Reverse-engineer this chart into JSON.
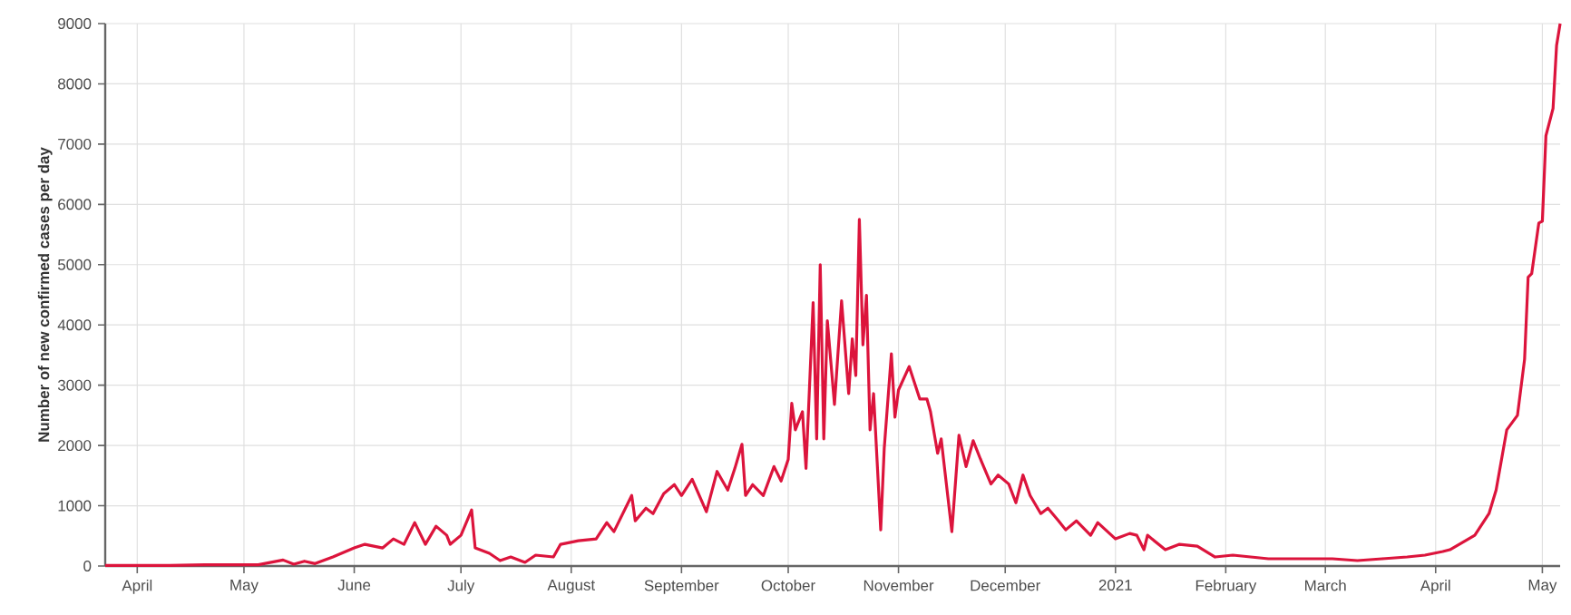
{
  "chart_data": {
    "type": "line",
    "ylabel": "Number of new confirmed cases per day",
    "x": [
      "2020-03-23",
      "2020-04-01",
      "2020-04-10",
      "2020-04-20",
      "2020-04-28",
      "2020-05-05",
      "2020-05-12",
      "2020-05-15",
      "2020-05-18",
      "2020-05-21",
      "2020-05-26",
      "2020-06-01",
      "2020-06-04",
      "2020-06-09",
      "2020-06-12",
      "2020-06-15",
      "2020-06-18",
      "2020-06-21",
      "2020-06-24",
      "2020-06-27",
      "2020-06-28",
      "2020-07-01",
      "2020-07-04",
      "2020-07-05",
      "2020-07-09",
      "2020-07-12",
      "2020-07-15",
      "2020-07-19",
      "2020-07-22",
      "2020-07-27",
      "2020-07-29",
      "2020-08-03",
      "2020-08-08",
      "2020-08-11",
      "2020-08-13",
      "2020-08-18",
      "2020-08-19",
      "2020-08-22",
      "2020-08-24",
      "2020-08-27",
      "2020-08-30",
      "2020-09-01",
      "2020-09-04",
      "2020-09-08",
      "2020-09-11",
      "2020-09-14",
      "2020-09-16",
      "2020-09-18",
      "2020-09-19",
      "2020-09-21",
      "2020-09-24",
      "2020-09-27",
      "2020-09-29",
      "2020-10-01",
      "2020-10-02",
      "2020-10-03",
      "2020-10-05",
      "2020-10-06",
      "2020-10-08",
      "2020-10-09",
      "2020-10-10",
      "2020-10-11",
      "2020-10-12",
      "2020-10-14",
      "2020-10-16",
      "2020-10-18",
      "2020-10-19",
      "2020-10-20",
      "2020-10-21",
      "2020-10-22",
      "2020-10-23",
      "2020-10-24",
      "2020-10-25",
      "2020-10-27",
      "2020-10-28",
      "2020-10-30",
      "2020-10-31",
      "2020-11-01",
      "2020-11-04",
      "2020-11-07",
      "2020-11-09",
      "2020-11-10",
      "2020-11-12",
      "2020-11-13",
      "2020-11-16",
      "2020-11-18",
      "2020-11-20",
      "2020-11-22",
      "2020-11-24",
      "2020-11-27",
      "2020-11-29",
      "2020-12-02",
      "2020-12-04",
      "2020-12-06",
      "2020-12-08",
      "2020-12-11",
      "2020-12-13",
      "2020-12-16",
      "2020-12-18",
      "2020-12-21",
      "2020-12-25",
      "2020-12-27",
      "2021-01-01",
      "2021-01-05",
      "2021-01-07",
      "2021-01-09",
      "2021-01-10",
      "2021-01-15",
      "2021-01-19",
      "2021-01-24",
      "2021-01-29",
      "2021-02-03",
      "2021-02-08",
      "2021-02-13",
      "2021-02-22",
      "2021-03-03",
      "2021-03-10",
      "2021-03-17",
      "2021-03-24",
      "2021-03-29",
      "2021-04-03",
      "2021-04-05",
      "2021-04-12",
      "2021-04-16",
      "2021-04-18",
      "2021-04-21",
      "2021-04-24",
      "2021-04-26",
      "2021-04-27",
      "2021-04-28",
      "2021-04-30",
      "2021-05-01",
      "2021-05-02",
      "2021-05-04",
      "2021-05-05",
      "2021-05-06"
    ],
    "series": [
      {
        "color": "#dc143c",
        "values": [
          10,
          10,
          10,
          20,
          20,
          20,
          100,
          30,
          80,
          40,
          150,
          300,
          360,
          300,
          450,
          360,
          720,
          360,
          660,
          510,
          360,
          510,
          930,
          300,
          210,
          90,
          150,
          60,
          180,
          150,
          360,
          420,
          450,
          720,
          570,
          1170,
          750,
          960,
          870,
          1200,
          1350,
          1170,
          1440,
          900,
          1570,
          1260,
          1620,
          2020,
          1170,
          1350,
          1170,
          1650,
          1410,
          1770,
          2700,
          2260,
          2560,
          1620,
          4370,
          2110,
          5000,
          2110,
          4070,
          2680,
          4400,
          2860,
          3770,
          3160,
          5750,
          3670,
          4490,
          2260,
          2860,
          600,
          1960,
          3520,
          2470,
          2920,
          3310,
          2770,
          2770,
          2560,
          1870,
          2110,
          570,
          2170,
          1650,
          2080,
          1780,
          1360,
          1510,
          1360,
          1050,
          1510,
          1170,
          870,
          960,
          750,
          600,
          750,
          510,
          720,
          450,
          540,
          510,
          270,
          510,
          270,
          360,
          330,
          150,
          180,
          150,
          120,
          120,
          120,
          90,
          120,
          150,
          180,
          240,
          270,
          510,
          870,
          1260,
          2260,
          2500,
          3430,
          4790,
          4850,
          5690,
          5720,
          7140,
          7590,
          8640,
          9000
        ]
      }
    ],
    "xlim": [
      "2020-03-23",
      "2021-05-06"
    ],
    "xticks": [
      {
        "value": "2020-04-01",
        "label": "April"
      },
      {
        "value": "2020-05-01",
        "label": "May"
      },
      {
        "value": "2020-06-01",
        "label": "June"
      },
      {
        "value": "2020-07-01",
        "label": "July"
      },
      {
        "value": "2020-08-01",
        "label": "August"
      },
      {
        "value": "2020-09-01",
        "label": "September"
      },
      {
        "value": "2020-10-01",
        "label": "October"
      },
      {
        "value": "2020-11-01",
        "label": "November"
      },
      {
        "value": "2020-12-01",
        "label": "December"
      },
      {
        "value": "2021-01-01",
        "label": "2021"
      },
      {
        "value": "2021-02-01",
        "label": "February"
      },
      {
        "value": "2021-03-01",
        "label": "March"
      },
      {
        "value": "2021-04-01",
        "label": "April"
      },
      {
        "value": "2021-05-01",
        "label": "May"
      }
    ],
    "ylim": [
      0,
      9000
    ],
    "yticks": [
      0,
      1000,
      2000,
      3000,
      4000,
      5000,
      6000,
      7000,
      8000,
      9000
    ],
    "grid": true,
    "marker": "none",
    "line_style": "solid"
  }
}
